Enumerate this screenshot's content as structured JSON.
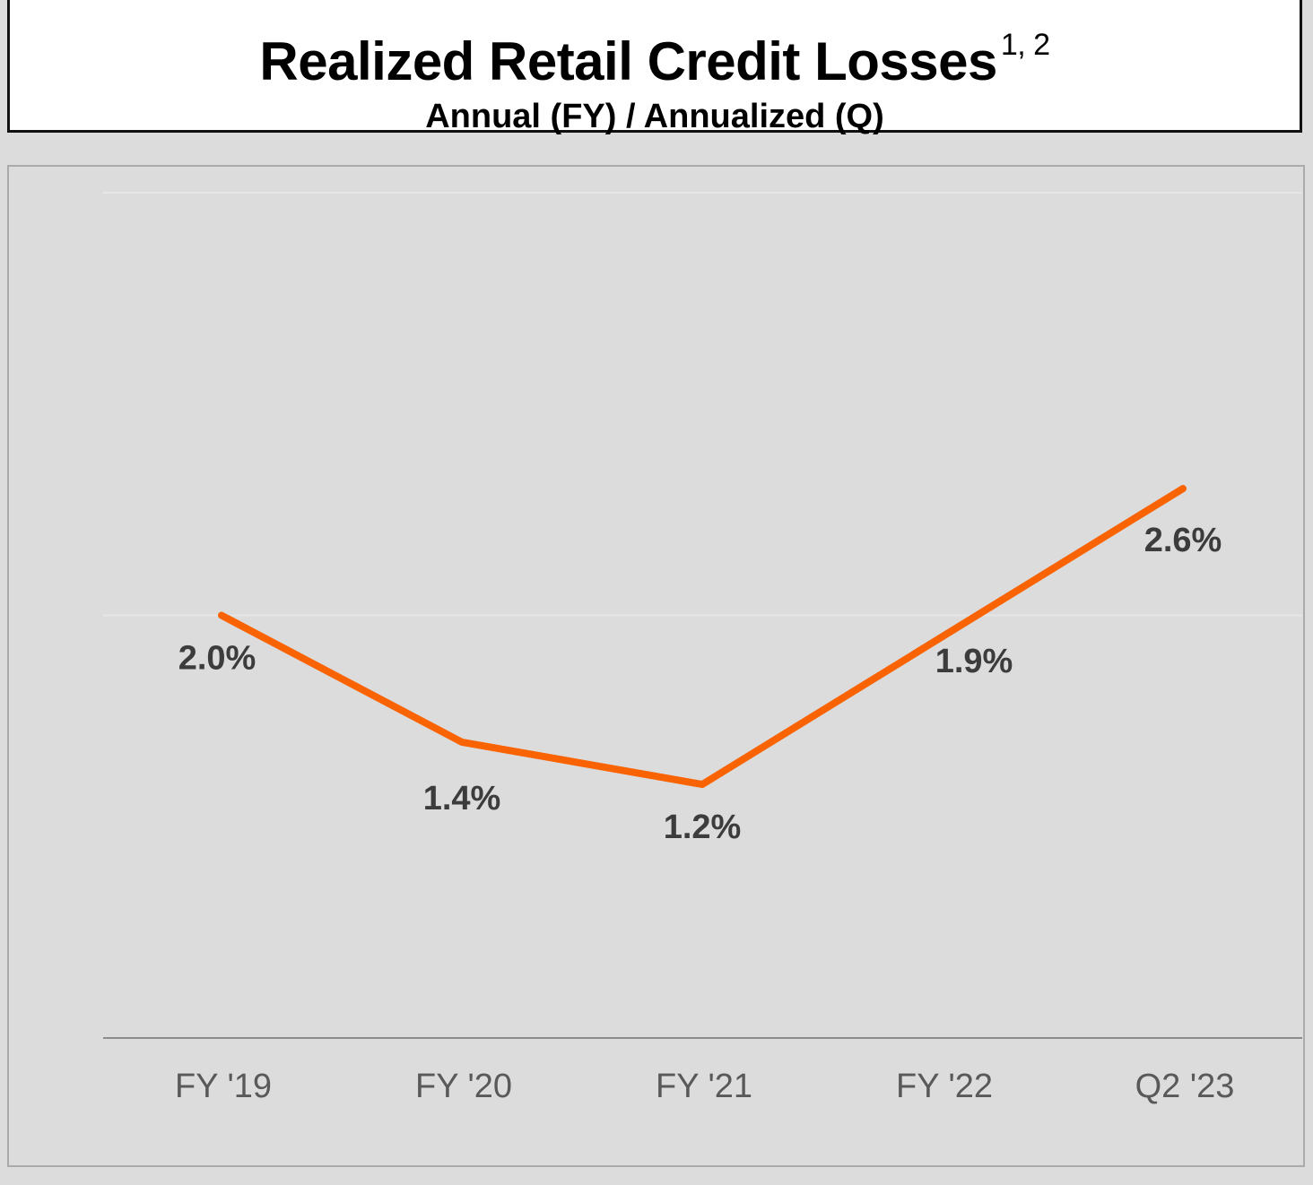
{
  "header": {
    "title": "Realized Retail Credit Losses",
    "title_sup": "1, 2",
    "subtitle": "Annual (FY) / Annualized (Q)"
  },
  "chart_data": {
    "type": "line",
    "title": "Realized Retail Credit Losses",
    "subtitle": "Annual (FY) / Annualized (Q)",
    "categories": [
      "FY '19",
      "FY '20",
      "FY '21",
      "FY '22",
      "Q2 '23"
    ],
    "series": [
      {
        "values": [
          2.0,
          1.4,
          1.2,
          1.9,
          2.6
        ],
        "data_labels": [
          "2.0%",
          "1.4%",
          "1.2%",
          "1.9%",
          "2.6%"
        ],
        "color": "#f96302"
      }
    ],
    "ylim": [
      0,
      4.0
    ],
    "grid": true,
    "legend": "none",
    "colors": {
      "line": "#f96302",
      "background": "#dcdcdc",
      "gridline": "#e6e6e6",
      "axis": "#8c8c8c"
    }
  }
}
